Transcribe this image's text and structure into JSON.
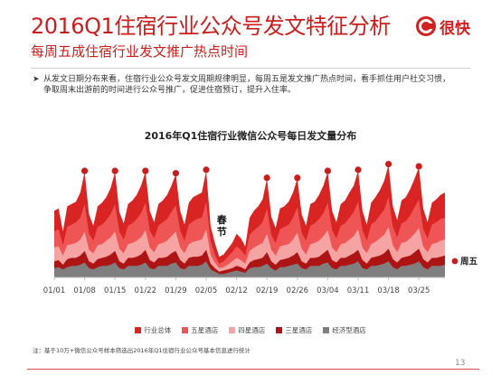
{
  "header": {
    "title": "2016Q1住宿行业公众号发文特征分析",
    "subtitle": "每周五成住宿行业发文推广热点时间",
    "logo_text": "很快"
  },
  "summary": {
    "line1": "从发文日期分布来看，住宿行业公众号发文周期规律明显，每周五是发文推广热点时间，看手抓住用户社交习惯，",
    "line2": "争取周末出游前的时间进行公众号推广，促进住宿预订，提升入住率。"
  },
  "chart_annotations": {
    "spring_festival": "春节",
    "friday": "周五"
  },
  "chart_data": {
    "type": "area",
    "title": "2016年Q1住宿行业微信公众号每日发文量分布",
    "xlabel": "",
    "ylabel": "",
    "x_ticks": [
      "01/01",
      "01/08",
      "01/15",
      "01/22",
      "01/29",
      "02/05",
      "02/12",
      "02/19",
      "02/26",
      "03/04",
      "03/11",
      "03/18",
      "03/25"
    ],
    "x": [
      "01/01",
      "01/02",
      "01/03",
      "01/04",
      "01/05",
      "01/06",
      "01/07",
      "01/08",
      "01/09",
      "01/10",
      "01/11",
      "01/12",
      "01/13",
      "01/14",
      "01/15",
      "01/16",
      "01/17",
      "01/18",
      "01/19",
      "01/20",
      "01/21",
      "01/22",
      "01/23",
      "01/24",
      "01/25",
      "01/26",
      "01/27",
      "01/28",
      "01/29",
      "01/30",
      "01/31",
      "02/01",
      "02/02",
      "02/03",
      "02/04",
      "02/05",
      "02/06",
      "02/07",
      "02/08",
      "02/09",
      "02/10",
      "02/11",
      "02/12",
      "02/13",
      "02/14",
      "02/15",
      "02/16",
      "02/17",
      "02/18",
      "02/19",
      "02/20",
      "02/21",
      "02/22",
      "02/23",
      "02/24",
      "02/25",
      "02/26",
      "02/27",
      "02/28",
      "02/29",
      "03/01",
      "03/02",
      "03/03",
      "03/04",
      "03/05",
      "03/06",
      "03/07",
      "03/08",
      "03/09",
      "03/10",
      "03/11",
      "03/12",
      "03/13",
      "03/14",
      "03/15",
      "03/16",
      "03/17",
      "03/18",
      "03/19",
      "03/20",
      "03/21",
      "03/22",
      "03/23",
      "03/24",
      "03/25",
      "03/26",
      "03/27",
      "03/28",
      "03/29",
      "03/30",
      "03/31"
    ],
    "series": [
      {
        "name": "行业总体",
        "color": "#d92424",
        "values": [
          58,
          60,
          40,
          62,
          64,
          66,
          74,
          92,
          55,
          45,
          62,
          65,
          70,
          78,
          92,
          57,
          47,
          64,
          67,
          72,
          80,
          92,
          58,
          48,
          64,
          67,
          72,
          80,
          90,
          58,
          46,
          65,
          70,
          72,
          74,
          93,
          45,
          30,
          18,
          20,
          25,
          30,
          38,
          34,
          27,
          52,
          58,
          62,
          68,
          86,
          53,
          43,
          60,
          62,
          66,
          74,
          86,
          55,
          45,
          64,
          66,
          72,
          80,
          92,
          58,
          48,
          64,
          67,
          74,
          80,
          93,
          58,
          46,
          65,
          70,
          76,
          84,
          98,
          62,
          50,
          67,
          70,
          77,
          86,
          96,
          60,
          48,
          65,
          68,
          72,
          74
        ]
      },
      {
        "name": "五星酒店",
        "color": "#f05555",
        "values": [
          40,
          42,
          28,
          44,
          46,
          48,
          52,
          64,
          38,
          32,
          44,
          46,
          50,
          55,
          64,
          40,
          33,
          45,
          47,
          51,
          56,
          65,
          41,
          34,
          45,
          48,
          51,
          57,
          63,
          41,
          32,
          46,
          49,
          51,
          52,
          66,
          32,
          20,
          12,
          14,
          18,
          22,
          27,
          24,
          19,
          37,
          41,
          44,
          48,
          60,
          37,
          30,
          42,
          44,
          46,
          52,
          61,
          39,
          32,
          45,
          47,
          51,
          56,
          65,
          41,
          34,
          45,
          47,
          52,
          57,
          66,
          41,
          32,
          46,
          49,
          54,
          59,
          70,
          44,
          35,
          47,
          49,
          54,
          61,
          68,
          42,
          34,
          46,
          48,
          51,
          52
        ]
      },
      {
        "name": "四星酒店",
        "color": "#f5a3a3",
        "values": [
          26,
          27,
          19,
          28,
          29,
          30,
          33,
          40,
          24,
          21,
          28,
          29,
          32,
          35,
          40,
          25,
          21,
          29,
          30,
          32,
          35,
          41,
          26,
          22,
          29,
          30,
          32,
          36,
          40,
          26,
          21,
          29,
          31,
          32,
          33,
          42,
          20,
          13,
          8,
          9,
          11,
          14,
          17,
          15,
          12,
          23,
          26,
          28,
          30,
          38,
          24,
          19,
          27,
          28,
          29,
          33,
          39,
          25,
          20,
          29,
          30,
          32,
          36,
          41,
          26,
          22,
          29,
          30,
          33,
          36,
          42,
          26,
          21,
          29,
          31,
          34,
          37,
          44,
          28,
          22,
          30,
          31,
          34,
          38,
          43,
          27,
          22,
          29,
          30,
          32,
          33
        ]
      },
      {
        "name": "三星酒店",
        "color": "#ad1414",
        "values": [
          14,
          15,
          11,
          16,
          17,
          17,
          19,
          23,
          14,
          12,
          16,
          17,
          18,
          20,
          23,
          14,
          12,
          17,
          17,
          18,
          20,
          24,
          15,
          13,
          17,
          17,
          18,
          21,
          23,
          15,
          12,
          17,
          18,
          18,
          19,
          24,
          12,
          8,
          5,
          6,
          7,
          8,
          10,
          9,
          7,
          13,
          15,
          16,
          17,
          22,
          14,
          11,
          15,
          16,
          17,
          19,
          22,
          14,
          12,
          17,
          17,
          18,
          21,
          24,
          15,
          13,
          17,
          17,
          19,
          21,
          24,
          15,
          12,
          17,
          18,
          19,
          21,
          25,
          16,
          13,
          17,
          18,
          19,
          22,
          25,
          16,
          13,
          17,
          17,
          18,
          19
        ]
      },
      {
        "name": "经济型酒店",
        "color": "#7f7f7f",
        "values": [
          8,
          9,
          7,
          9,
          10,
          10,
          11,
          13,
          8,
          7,
          9,
          10,
          10,
          11,
          13,
          8,
          7,
          10,
          10,
          10,
          11,
          13,
          8,
          7,
          10,
          10,
          10,
          12,
          13,
          8,
          7,
          10,
          10,
          10,
          11,
          14,
          7,
          5,
          3,
          3,
          4,
          5,
          6,
          5,
          4,
          8,
          9,
          9,
          10,
          12,
          8,
          6,
          9,
          9,
          10,
          11,
          12,
          8,
          7,
          10,
          10,
          10,
          12,
          13,
          8,
          7,
          10,
          10,
          11,
          12,
          14,
          8,
          7,
          10,
          10,
          11,
          12,
          14,
          9,
          7,
          10,
          10,
          11,
          12,
          14,
          9,
          7,
          10,
          10,
          10,
          11
        ]
      }
    ],
    "highlight_points": [
      {
        "x": "01/08",
        "y": 92
      },
      {
        "x": "01/15",
        "y": 92
      },
      {
        "x": "01/22",
        "y": 92
      },
      {
        "x": "01/29",
        "y": 90
      },
      {
        "x": "02/05",
        "y": 93
      },
      {
        "x": "02/19",
        "y": 86
      },
      {
        "x": "02/26",
        "y": 86
      },
      {
        "x": "03/04",
        "y": 92
      },
      {
        "x": "03/11",
        "y": 93
      },
      {
        "x": "03/18",
        "y": 98
      },
      {
        "x": "03/25",
        "y": 96
      }
    ],
    "highlight_label": "周五",
    "highlight_color": "#c81e1e",
    "ylim": [
      0,
      100
    ],
    "grid": false,
    "legend_position": "bottom"
  },
  "footnote": "注：基于10万+微信公众号样本筛选出2016年Q1住宿行业公众号基本信息进行统计",
  "page_number": "13"
}
